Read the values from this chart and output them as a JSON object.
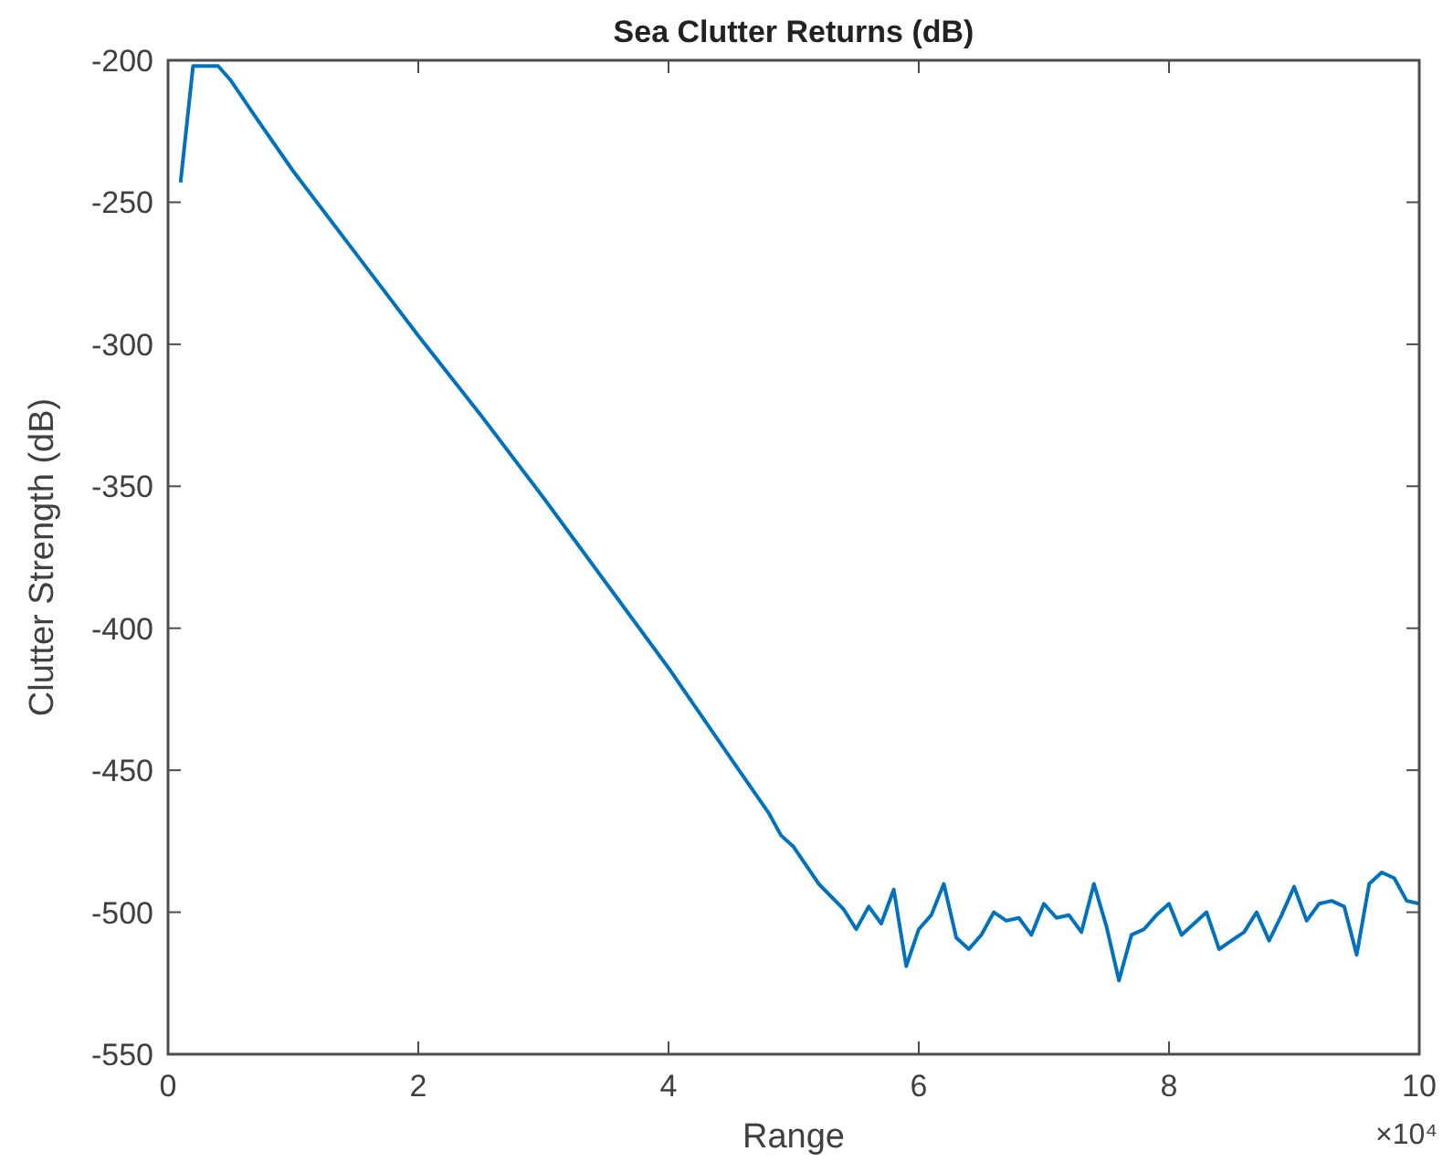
{
  "chart_data": {
    "type": "line",
    "title": "Sea Clutter Returns (dB)",
    "xlabel": "Range",
    "ylabel": "Clutter Strength (dB)",
    "annotations": [
      "×10⁴"
    ],
    "xlim": [
      0,
      10
    ],
    "xticks": [
      0,
      2,
      4,
      6,
      8,
      10
    ],
    "ylim": [
      -550,
      -200
    ],
    "yticks": [
      -550,
      -500,
      -450,
      -400,
      -350,
      -300,
      -250,
      -200
    ],
    "grid": false,
    "series": [
      {
        "color": "#0072bd",
        "x": [
          0.1,
          0.2,
          0.3,
          0.4,
          0.5,
          0.7,
          1.0,
          1.5,
          2.0,
          2.5,
          3.0,
          3.5,
          4.0,
          4.5,
          4.8,
          4.9,
          5.0,
          5.2,
          5.4,
          5.5,
          5.6,
          5.7,
          5.8,
          5.9,
          6.0,
          6.1,
          6.2,
          6.3,
          6.4,
          6.5,
          6.6,
          6.7,
          6.8,
          6.9,
          7.0,
          7.1,
          7.2,
          7.3,
          7.4,
          7.5,
          7.6,
          7.7,
          7.8,
          7.9,
          8.0,
          8.1,
          8.2,
          8.3,
          8.4,
          8.5,
          8.6,
          8.7,
          8.8,
          8.9,
          9.0,
          9.1,
          9.2,
          9.3,
          9.4,
          9.5,
          9.6,
          9.7,
          9.8,
          9.9,
          10.0
        ],
        "values": [
          -243,
          -202,
          -202,
          -202,
          -207,
          -220,
          -239,
          -268,
          -297,
          -325,
          -354,
          -384,
          -414,
          -446,
          -465,
          -473,
          -477,
          -490,
          -499,
          -506,
          -498,
          -504,
          -492,
          -519,
          -506,
          -501,
          -490,
          -509,
          -513,
          -508,
          -500,
          -503,
          -502,
          -508,
          -497,
          -502,
          -501,
          -507,
          -490,
          -505,
          -524,
          -508,
          -506,
          -501,
          -497,
          -508,
          -504,
          -500,
          -513,
          -510,
          -507,
          -500,
          -510,
          -501,
          -491,
          -503,
          -497,
          -496,
          -498,
          -515,
          -490,
          -486,
          -488,
          -496,
          -497
        ]
      }
    ]
  }
}
